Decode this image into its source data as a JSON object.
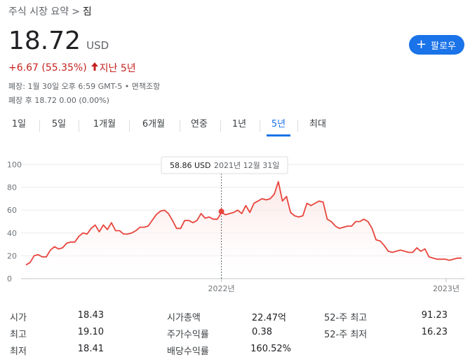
{
  "breadcrumb": {
    "parent": "주식 시장 요약",
    "separator": ">",
    "current": "짐"
  },
  "quote": {
    "price": "18.72",
    "currency": "USD",
    "change": "+6.67 (55.35%)",
    "arrow": "🡑",
    "period": "지난 5년",
    "meta_close": "폐장: 1월 30일 오후 6:59 GMT-5 • 면책조항",
    "meta_after_hours": "폐장 후 18.72 0.00 (0.00%)"
  },
  "follow_button": {
    "icon": "plus-icon",
    "label": "팔로우"
  },
  "tabs": [
    {
      "label": "1일",
      "active": false
    },
    {
      "label": "5일",
      "active": false
    },
    {
      "label": "1개월",
      "active": false
    },
    {
      "label": "6개월",
      "active": false
    },
    {
      "label": "연중",
      "active": false
    },
    {
      "label": "1년",
      "active": false
    },
    {
      "label": "5년",
      "active": true
    },
    {
      "label": "최대",
      "active": false
    }
  ],
  "tooltip": {
    "value": "58.86 USD",
    "date": "2021년 12월 31일"
  },
  "chart_data": {
    "type": "area",
    "y_ticks": [
      0,
      20,
      40,
      60,
      80,
      100
    ],
    "ylim": [
      0,
      100
    ],
    "x_tick_labels": [
      "2022년",
      "2023년"
    ],
    "line_color": "#e8453c",
    "fill_color": "#fbe9e7",
    "grid": true,
    "values": [
      12,
      14,
      20,
      21,
      19,
      19,
      25,
      28,
      26,
      27,
      31,
      32,
      32,
      37,
      40,
      39,
      44,
      47,
      41,
      47,
      43,
      49,
      42,
      42,
      39,
      39,
      40,
      42,
      45,
      45,
      46,
      51,
      56,
      59,
      60,
      57,
      51,
      44,
      44,
      51,
      51,
      49,
      51,
      57,
      53,
      54,
      52,
      52,
      58,
      56,
      57,
      58,
      60,
      57,
      64,
      58,
      66,
      68,
      70,
      69,
      70,
      74,
      85,
      68,
      72,
      58,
      55,
      54,
      55,
      66,
      64,
      66,
      68,
      67,
      52,
      50,
      46,
      44,
      45,
      46,
      46,
      50,
      50,
      52,
      50,
      44,
      34,
      33,
      29,
      24,
      23,
      24,
      25,
      24,
      23,
      23,
      27,
      24,
      26,
      19,
      18,
      17,
      17,
      17,
      16,
      17,
      18,
      18
    ],
    "highlight_value": 58.86
  },
  "stats": [
    {
      "label": "시가",
      "value": "18.43"
    },
    {
      "label": "최고",
      "value": "19.10"
    },
    {
      "label": "최저",
      "value": "18.41"
    },
    {
      "label": "시가총액",
      "value": "22.47억"
    },
    {
      "label": "주가수익률",
      "value": "0.38"
    },
    {
      "label": "배당수익률",
      "value": "160.52%"
    },
    {
      "label": "52-주 최고",
      "value": "91.23"
    },
    {
      "label": "52-주 최저",
      "value": "16.23"
    }
  ]
}
